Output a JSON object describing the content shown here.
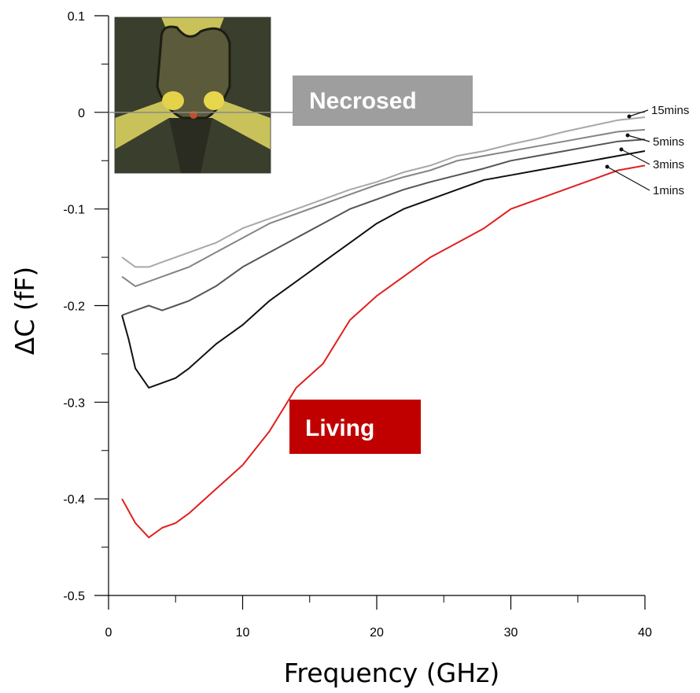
{
  "chart_data": {
    "type": "line",
    "title": "",
    "xlabel": "Frequency (GHz)",
    "ylabel": "ΔC (fF)",
    "xlim": [
      0,
      40
    ],
    "ylim": [
      -0.5,
      0.1
    ],
    "xticks": [
      0,
      10,
      20,
      30,
      40
    ],
    "xtick_labels": [
      "0",
      "10",
      "20",
      "30",
      "40"
    ],
    "yticks": [
      -0.5,
      -0.4,
      -0.3,
      -0.2,
      -0.1,
      0,
      0.1
    ],
    "ytick_labels": [
      "-0.5",
      "-0.4",
      "-0.3",
      "-0.2",
      "-0.1",
      "0",
      "0.1"
    ],
    "grid": false,
    "annotations": {
      "necrosed": "Necrosed",
      "living": "Living",
      "inset": "microscope image of cell between electrodes"
    },
    "colors": {
      "living": "#e02020",
      "necrosed_badge": "#9e9e9e",
      "living_badge": "#c00000",
      "reference_line": "#8a8a8a"
    },
    "reference_line_y": 0,
    "series": [
      {
        "name": "15mins",
        "color": "#a8a8a8",
        "x": [
          1,
          2,
          3,
          4,
          5,
          6,
          8,
          10,
          12,
          14,
          16,
          18,
          20,
          22,
          24,
          26,
          28,
          30,
          32,
          34,
          36,
          38,
          40
        ],
        "y": [
          -0.15,
          -0.16,
          -0.16,
          -0.155,
          -0.15,
          -0.145,
          -0.135,
          -0.12,
          -0.11,
          -0.1,
          -0.09,
          -0.08,
          -0.072,
          -0.062,
          -0.055,
          -0.045,
          -0.04,
          -0.033,
          -0.027,
          -0.02,
          -0.014,
          -0.008,
          -0.005
        ]
      },
      {
        "name": "5mins",
        "color": "#858585",
        "x": [
          1,
          2,
          3,
          4,
          5,
          6,
          8,
          10,
          12,
          14,
          16,
          18,
          20,
          22,
          24,
          26,
          28,
          30,
          32,
          34,
          36,
          38,
          40
        ],
        "y": [
          -0.17,
          -0.18,
          -0.175,
          -0.17,
          -0.165,
          -0.16,
          -0.145,
          -0.13,
          -0.115,
          -0.105,
          -0.095,
          -0.085,
          -0.075,
          -0.067,
          -0.06,
          -0.05,
          -0.045,
          -0.04,
          -0.035,
          -0.03,
          -0.025,
          -0.02,
          -0.018
        ]
      },
      {
        "name": "3mins",
        "color": "#555555",
        "x": [
          1,
          2,
          3,
          4,
          5,
          6,
          8,
          10,
          12,
          14,
          16,
          18,
          20,
          22,
          24,
          26,
          28,
          30,
          32,
          34,
          36,
          38,
          40
        ],
        "y": [
          -0.21,
          -0.205,
          -0.2,
          -0.205,
          -0.2,
          -0.195,
          -0.18,
          -0.16,
          -0.145,
          -0.13,
          -0.115,
          -0.1,
          -0.09,
          -0.08,
          -0.072,
          -0.065,
          -0.058,
          -0.05,
          -0.045,
          -0.04,
          -0.035,
          -0.03,
          -0.028
        ]
      },
      {
        "name": "1mins",
        "color": "#111111",
        "x": [
          1,
          1.5,
          2,
          3,
          4,
          5,
          6,
          8,
          10,
          12,
          14,
          16,
          18,
          20,
          22,
          24,
          26,
          28,
          30,
          32,
          34,
          36,
          38,
          40
        ],
        "y": [
          -0.21,
          -0.235,
          -0.265,
          -0.285,
          -0.28,
          -0.275,
          -0.265,
          -0.24,
          -0.22,
          -0.195,
          -0.175,
          -0.155,
          -0.135,
          -0.115,
          -0.1,
          -0.09,
          -0.08,
          -0.07,
          -0.065,
          -0.06,
          -0.055,
          -0.05,
          -0.045,
          -0.04
        ]
      },
      {
        "name": "Living",
        "color": "#e02020",
        "x": [
          1,
          2,
          3,
          4,
          5,
          6,
          8,
          10,
          12,
          14,
          16,
          18,
          20,
          22,
          24,
          26,
          28,
          30,
          32,
          34,
          36,
          38,
          40
        ],
        "y": [
          -0.4,
          -0.425,
          -0.44,
          -0.43,
          -0.425,
          -0.415,
          -0.39,
          -0.365,
          -0.33,
          -0.285,
          -0.26,
          -0.215,
          -0.19,
          -0.17,
          -0.15,
          -0.135,
          -0.12,
          -0.1,
          -0.09,
          -0.08,
          -0.07,
          -0.06,
          -0.055
        ]
      }
    ],
    "curve_labels": [
      {
        "series": "15mins",
        "text": "15mins"
      },
      {
        "series": "5mins",
        "text": "5mins"
      },
      {
        "series": "3mins",
        "text": "3mins"
      },
      {
        "series": "1mins",
        "text": "1mins"
      }
    ]
  }
}
